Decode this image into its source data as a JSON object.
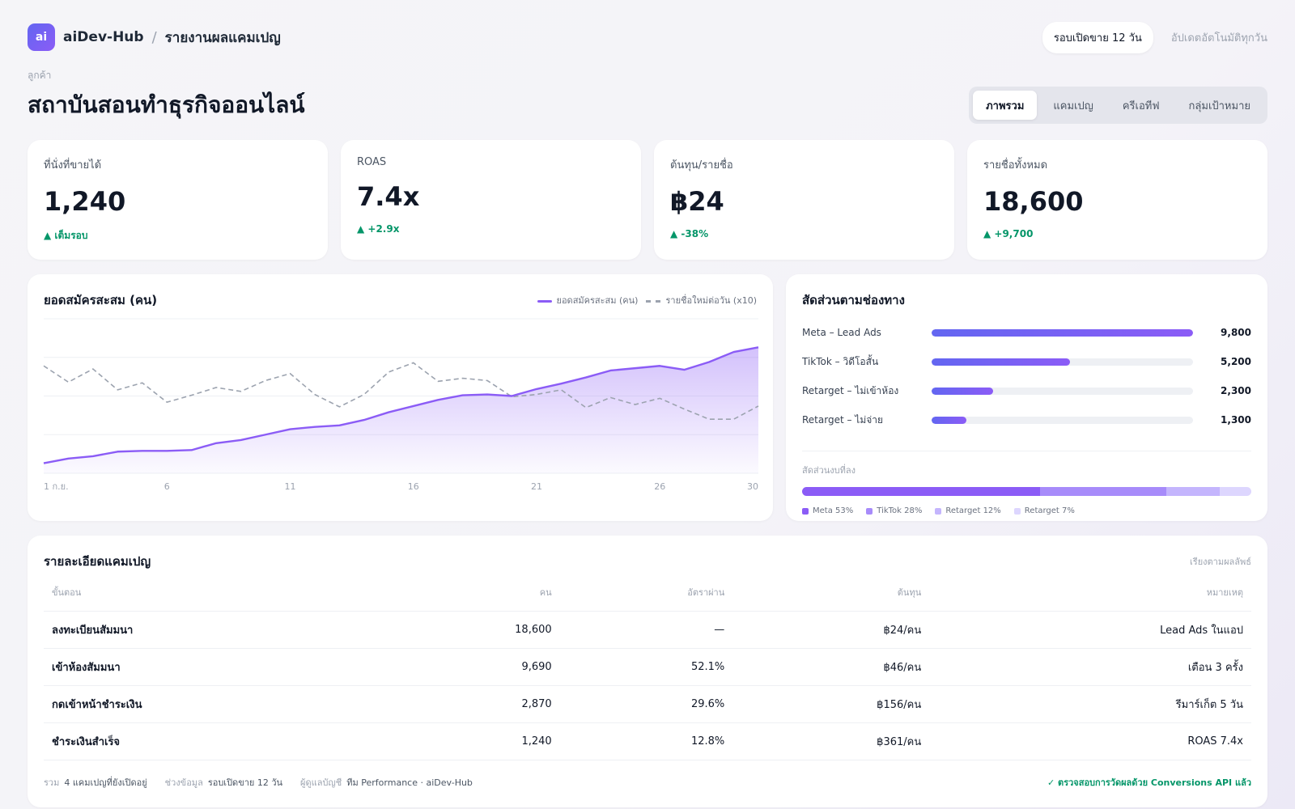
{
  "brand": {
    "logo": "ai",
    "name": "aiDev-Hub",
    "separator": "/",
    "page": "รายงานผลแคมเปญ"
  },
  "topbar": {
    "round_pill": "รอบเปิดขาย 12 วัน",
    "update_text": "อัปเดตอัตโนมัติทุกวัน"
  },
  "client": {
    "label": "ลูกค้า",
    "name": "สถาบันสอนทำธุรกิจออนไลน์"
  },
  "tabs": [
    {
      "label": "ภาพรวม",
      "active": true
    },
    {
      "label": "แคมเปญ",
      "active": false
    },
    {
      "label": "ครีเอทีฟ",
      "active": false
    },
    {
      "label": "กลุ่มเป้าหมาย",
      "active": false
    }
  ],
  "kpis": [
    {
      "label": "ที่นั่งที่ขายได้",
      "value": "1,240",
      "delta": "▲ เต็มรอบ"
    },
    {
      "label": "ROAS",
      "value": "7.4x",
      "delta": "▲ +2.9x"
    },
    {
      "label": "ต้นทุน/รายชื่อ",
      "value": "฿24",
      "delta": "▲ -38%"
    },
    {
      "label": "รายชื่อทั้งหมด",
      "value": "18,600",
      "delta": "▲ +9,700"
    }
  ],
  "chart_data": {
    "type": "line",
    "title": "ยอดสมัครสะสม (คน)",
    "x": [
      1,
      2,
      3,
      4,
      5,
      6,
      7,
      8,
      9,
      10,
      11,
      12,
      13,
      14,
      15,
      16,
      17,
      18,
      19,
      20,
      21,
      22,
      23,
      24,
      25,
      26,
      27,
      28,
      29,
      30
    ],
    "xticks": [
      {
        "x": 1,
        "label": "1 ก.ย."
      },
      {
        "x": 6,
        "label": "6"
      },
      {
        "x": 11,
        "label": "11"
      },
      {
        "x": 16,
        "label": "16"
      },
      {
        "x": 21,
        "label": "21"
      },
      {
        "x": 26,
        "label": "26"
      },
      {
        "x": 30,
        "label": "30"
      }
    ],
    "ylim": [
      0,
      20000
    ],
    "grid": true,
    "legend_position": "top-right",
    "series": [
      {
        "name": "ยอดสมัครสะสม (คน)",
        "style": "solid-area",
        "color": "#8b5cf6",
        "values": [
          1300,
          1900,
          2200,
          2800,
          2900,
          2900,
          3000,
          3900,
          4300,
          5000,
          5700,
          6000,
          6200,
          6900,
          7900,
          8700,
          9500,
          10100,
          10200,
          10000,
          10900,
          11600,
          12400,
          13300,
          13600,
          13900,
          13400,
          14400,
          15700,
          16300
        ]
      },
      {
        "name": "รายชื่อใหม่ต่อวัน (x10)",
        "style": "dashed",
        "color": "#9ca3af",
        "values": [
          13900,
          11800,
          13500,
          10800,
          11700,
          9200,
          10100,
          11100,
          10600,
          12000,
          12900,
          10200,
          8600,
          10200,
          13100,
          14300,
          11900,
          12300,
          12000,
          9900,
          10200,
          10800,
          8500,
          9800,
          8900,
          9700,
          8300,
          7000,
          7000,
          8700
        ]
      }
    ]
  },
  "channels": {
    "title": "สัดส่วนตามช่องทาง",
    "max": 9800,
    "items": [
      {
        "name": "Meta – Lead Ads",
        "value": 9800,
        "value_label": "9,800"
      },
      {
        "name": "TikTok – วิดีโอสั้น",
        "value": 5200,
        "value_label": "5,200"
      },
      {
        "name": "Retarget – ไม่เข้าห้อง",
        "value": 2300,
        "value_label": "2,300"
      },
      {
        "name": "Retarget – ไม่จ่าย",
        "value": 1300,
        "value_label": "1,300"
      }
    ],
    "budget_label": "สัดส่วนงบที่ลง",
    "budget": [
      {
        "label": "Meta 53%",
        "pct": 53,
        "color": "#8b5cf6"
      },
      {
        "label": "TikTok 28%",
        "pct": 28,
        "color": "#a78bfa"
      },
      {
        "label": "Retarget 12%",
        "pct": 12,
        "color": "#c4b5fd"
      },
      {
        "label": "Retarget 7%",
        "pct": 7,
        "color": "#ddd6fe"
      }
    ]
  },
  "table": {
    "title": "รายละเอียดแคมเปญ",
    "sort_hint": "เรียงตามผลลัพธ์",
    "columns": [
      "ขั้นตอน",
      "คน",
      "อัตราผ่าน",
      "ต้นทุน",
      "หมายเหตุ"
    ],
    "rows": [
      [
        "ลงทะเบียนสัมมนา",
        "18,600",
        "—",
        "฿24/คน",
        "Lead Ads ในแอป"
      ],
      [
        "เข้าห้องสัมมนา",
        "9,690",
        "52.1%",
        "฿46/คน",
        "เตือน 3 ครั้ง"
      ],
      [
        "กดเข้าหน้าชำระเงิน",
        "2,870",
        "29.6%",
        "฿156/คน",
        "รีมาร์เก็ต 5 วัน"
      ],
      [
        "ชำระเงินสำเร็จ",
        "1,240",
        "12.8%",
        "฿361/คน",
        "ROAS 7.4x"
      ]
    ],
    "footer": {
      "total_label": "รวม",
      "total_value": "4 แคมเปญที่ยังเปิดอยู่",
      "range_label": "ช่วงข้อมูล",
      "range_value": "รอบเปิดขาย 12 วัน",
      "owner_label": "ผู้ดูแลบัญชี",
      "owner_value": "ทีม Performance · aiDev-Hub",
      "verified": "✓ ตรวจสอบการวัดผลด้วย Conversions API แล้ว"
    }
  }
}
